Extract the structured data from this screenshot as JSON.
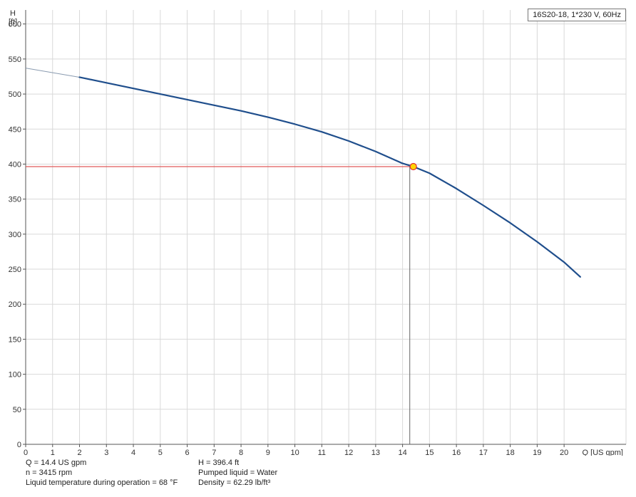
{
  "chart_data": {
    "type": "line",
    "title": "",
    "legend": "16S20-18, 1*230 V, 60Hz",
    "legend_position": "top-right",
    "ylabel_line1": "H",
    "ylabel_line2": "[ft]",
    "xlabel": "Q [US gpm]",
    "xlim": [
      0,
      22.3
    ],
    "ylim": [
      0,
      620
    ],
    "x_ticks": [
      0,
      1,
      2,
      3,
      4,
      5,
      6,
      7,
      8,
      9,
      10,
      11,
      12,
      13,
      14,
      15,
      16,
      17,
      18,
      19,
      20
    ],
    "y_ticks": [
      0,
      50,
      100,
      150,
      200,
      250,
      300,
      350,
      400,
      450,
      500,
      550,
      600
    ],
    "grid": true,
    "series": [
      {
        "color": "#1f4e8c",
        "x": [
          2,
          3,
          4,
          5,
          6,
          7,
          8,
          9,
          10,
          11,
          12,
          13,
          14,
          14.4,
          15,
          16,
          17,
          18,
          19,
          20,
          20.6
        ],
        "y": [
          524,
          516,
          508,
          500,
          492,
          484,
          476,
          467,
          457,
          446,
          433,
          418,
          401,
          396.4,
          387,
          365,
          341,
          316,
          289,
          260,
          239
        ]
      }
    ],
    "extrapolated": {
      "color": "#8a9bb0",
      "x": [
        0,
        2
      ],
      "y": [
        537,
        524
      ]
    },
    "operating_point": {
      "x": 14.4,
      "y": 396.4,
      "fill": "#ffd400",
      "stroke": "#e03030"
    },
    "h_line_color": "#e05a5a",
    "v_line_color": "#666666"
  },
  "info": {
    "q": "Q = 14.4 US gpm",
    "n": "n = 3415 rpm",
    "temp": "Liquid temperature during operation = 68 °F",
    "h": "H = 396.4 ft",
    "liquid": "Pumped liquid = Water",
    "density": "Density = 62.29 lb/ft³"
  }
}
